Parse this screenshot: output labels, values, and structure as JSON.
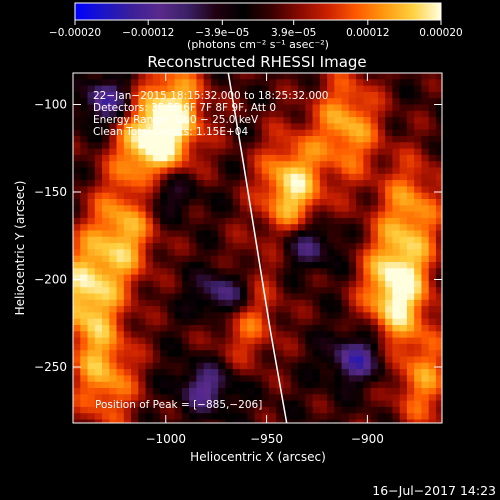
{
  "chart_data": {
    "type": "heatmap",
    "title": "Reconstructed RHESSI Image",
    "xlabel": "Heliocentric X (arcsec)",
    "ylabel": "Heliocentric Y (arcsec)",
    "xlim": [
      -1046,
      -863
    ],
    "ylim": [
      -282,
      -82
    ],
    "xticks": [
      -1000,
      -950,
      -900
    ],
    "xtick_labels": [
      "−1000",
      "−950",
      "−900"
    ],
    "yticks": [
      -100,
      -150,
      -200,
      -250
    ],
    "ytick_labels": [
      "−100",
      "−150",
      "−200",
      "−250"
    ],
    "colorbar": {
      "range": [
        -0.0002,
        0.0002
      ],
      "ticks": [
        -0.0002,
        -0.00012,
        -3.9e-05,
        3.9e-05,
        0.00012,
        0.0002
      ],
      "tick_labels": [
        "−0.00020",
        "−0.00012",
        "−3.9e−05",
        "3.9e−05",
        "0.00012",
        "0.00020"
      ],
      "units_label": "(photons cm⁻² s⁻¹ asec⁻²)",
      "colormap": [
        "#0000ff",
        "#1b14c8",
        "#3a1f9a",
        "#5a2a8c",
        "#3a2066",
        "#200010",
        "#000000",
        "#3a0000",
        "#8a0a00",
        "#cc2200",
        "#ff5a00",
        "#ff9a10",
        "#ffd040",
        "#ffffe0"
      ]
    },
    "info_lines": [
      "22−Jan−2015 18:15:32.000 to 18:25:32.000",
      "Detectors: 3F 5F 6F 7F 8F 9F, Att 0",
      "Energy Range: 12.0 − 25.0 keV",
      "Clean    Total counts: 1.15E+04"
    ],
    "peak_label": "Position of Peak = [−885,−206]",
    "peak_position": [
      -885,
      -206
    ],
    "limb_curve": [
      [
        -969,
        -82
      ],
      [
        -962,
        -130
      ],
      [
        -955,
        -180
      ],
      [
        -948,
        -230
      ],
      [
        -940,
        -282
      ]
    ],
    "grid": false,
    "bright_sources": [
      {
        "x": -886,
        "y": -205,
        "intensity": 1.0
      },
      {
        "x": -938,
        "y": -148,
        "intensity": 0.85
      },
      {
        "x": -1040,
        "y": -208,
        "intensity": 0.8
      },
      {
        "x": -1010,
        "y": -122,
        "intensity": 0.8
      },
      {
        "x": -995,
        "y": -106,
        "intensity": 0.75
      },
      {
        "x": -1022,
        "y": -175,
        "intensity": 0.7
      },
      {
        "x": -910,
        "y": -112,
        "intensity": 0.7
      },
      {
        "x": -878,
        "y": -160,
        "intensity": 0.6
      },
      {
        "x": -1030,
        "y": -256,
        "intensity": 0.65
      },
      {
        "x": -960,
        "y": -218,
        "intensity": 0.55
      },
      {
        "x": -872,
        "y": -258,
        "intensity": 0.55
      }
    ],
    "dark_sources": [
      {
        "x": -970,
        "y": -208,
        "intensity": -0.8
      },
      {
        "x": -1028,
        "y": -98,
        "intensity": -0.7
      },
      {
        "x": -930,
        "y": -180,
        "intensity": -0.6
      },
      {
        "x": -905,
        "y": -245,
        "intensity": -0.7
      },
      {
        "x": -980,
        "y": -262,
        "intensity": -0.6
      },
      {
        "x": -1000,
        "y": -150,
        "intensity": -0.55
      }
    ]
  },
  "footer": {
    "timestamp": "16−Jul−2017 14:23"
  }
}
